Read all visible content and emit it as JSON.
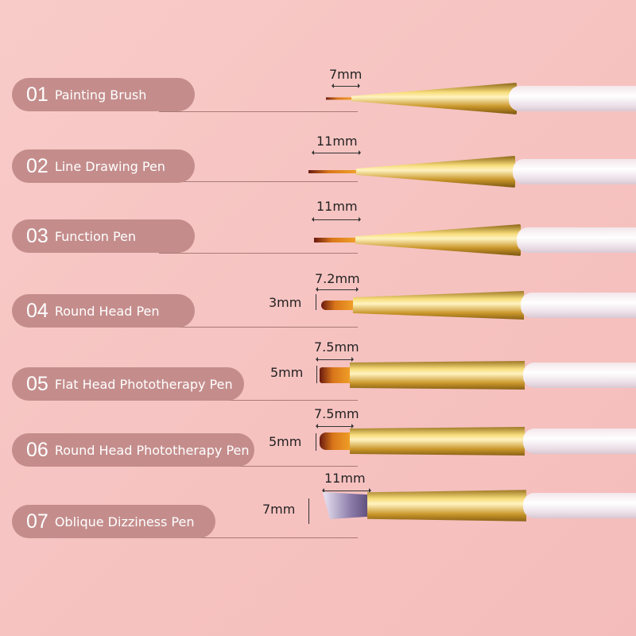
{
  "colors": {
    "background": "#f7c6c4",
    "label_pill": "#c48d8c",
    "ferrule": "#d4a93c",
    "handle": "#f4ecef"
  },
  "items": [
    {
      "number": "01",
      "name": "Painting Brush",
      "length": "7mm"
    },
    {
      "number": "02",
      "name": "Line Drawing Pen",
      "length": "11mm"
    },
    {
      "number": "03",
      "name": "Function Pen",
      "length": "11mm"
    },
    {
      "number": "04",
      "name": "Round Head Pen",
      "length": "7.2mm",
      "width": "3mm"
    },
    {
      "number": "05",
      "name": "Flat Head Phototherapy Pen",
      "length": "7.5mm",
      "width": "5mm"
    },
    {
      "number": "06",
      "name": "Round Head Phototherapy Pen",
      "length": "7.5mm",
      "width": "5mm"
    },
    {
      "number": "07",
      "name": "Oblique Dizziness Pen",
      "length": "11mm",
      "width": "7mm"
    }
  ]
}
